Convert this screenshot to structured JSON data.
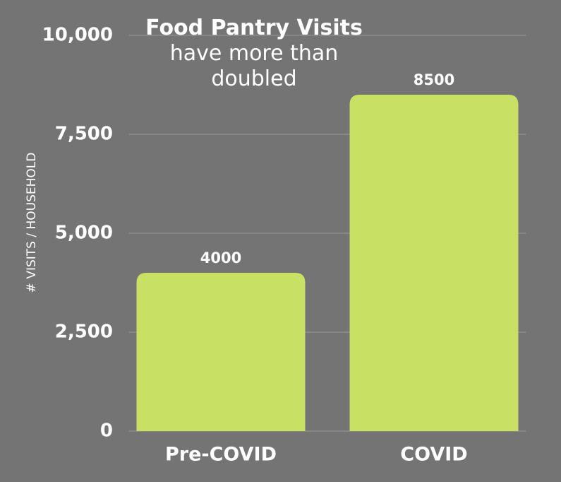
{
  "chart_data": {
    "type": "bar",
    "title": "Food Pantry Visits",
    "subtitle": "have more than doubled",
    "y_label": "# VISITS / HOUSEHOLD",
    "categories": [
      "Pre-COVID",
      "COVID"
    ],
    "values": [
      4000,
      8500
    ],
    "color": "#c8e064",
    "ylim": [
      0,
      10000
    ],
    "yticks": [
      0,
      {
        "value": 2500,
        "label": "2,500"
      },
      {
        "value": 5000,
        "label": "5,000"
      },
      {
        "value": 7500,
        "label": "7,500"
      },
      {
        "value": 10000,
        "label": "10,000"
      }
    ],
    "grid": true
  }
}
